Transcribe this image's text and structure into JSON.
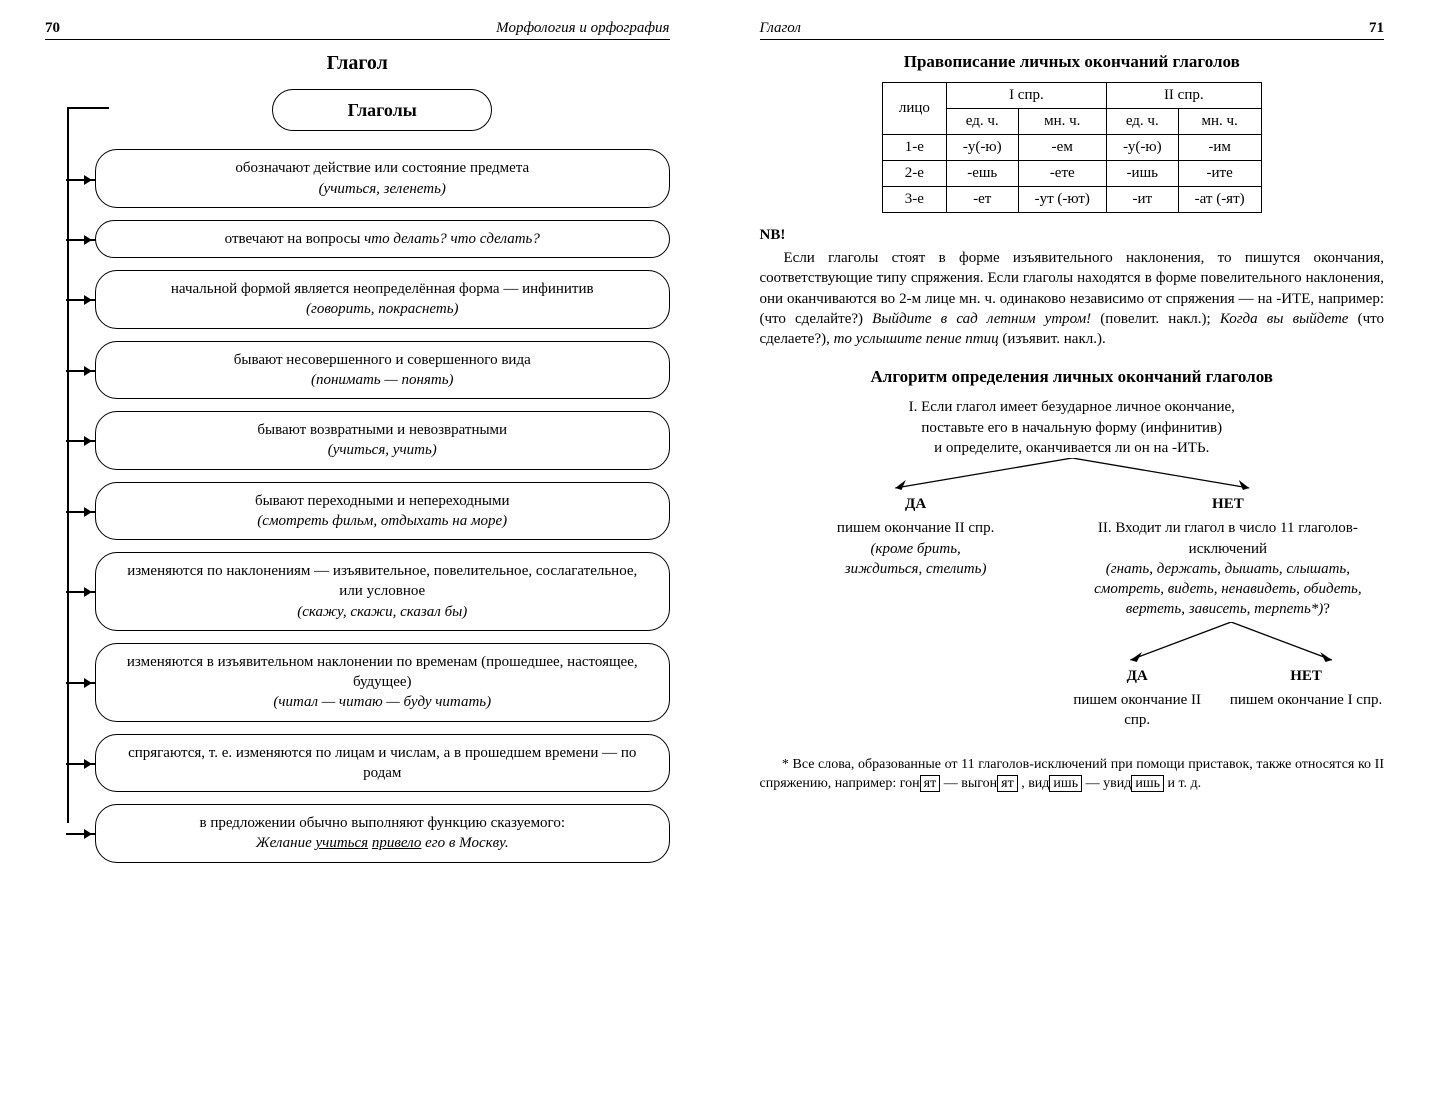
{
  "left": {
    "page_num": "70",
    "running": "Морфология и орфография",
    "title": "Глагол",
    "root": "Глаголы",
    "nodes": [
      {
        "text": "обозначают действие или состояние предмета",
        "eg": "(учиться, зеленеть)"
      },
      {
        "text": "отвечают на вопросы что делать? что сделать?",
        "eg": ""
      },
      {
        "text": "начальной формой является неопределённая форма — инфинитив",
        "eg": "(говорить, покраснеть)"
      },
      {
        "text": "бывают несовершенного и совершенного вида",
        "eg": "(понимать — понять)"
      },
      {
        "text": "бывают возвратными и невозвратными",
        "eg": "(учиться, учить)"
      },
      {
        "text": "бывают переходными и непереходными",
        "eg": "(смотреть фильм, отдыхать на море)"
      },
      {
        "text": "изменяются по наклонениям — изъявительное, повелительное, сослагательное, или условное",
        "eg": "(скажу, скажи, сказал бы)"
      },
      {
        "text": "изменяются в изъявительном наклонении по временам (прошедшее, настоящее, будущее)",
        "eg": "(читал — читаю — буду читать)"
      },
      {
        "text": "спрягаются, т. е. изменяются по лицам и числам, а в прошедшем времени — по родам",
        "eg": ""
      },
      {
        "text": "в предложении обычно выполняют функцию сказуемого:",
        "sent_pre": "Желание ",
        "sent_u1": "учиться",
        "sent_mid": " ",
        "sent_u2": "привело",
        "sent_post": " его в Москву."
      }
    ]
  },
  "right": {
    "page_num": "71",
    "running": "Глагол",
    "title1": "Правописание личных окончаний глаголов",
    "table": {
      "col_person": "лицо",
      "grp1": "I спр.",
      "grp2": "II спр.",
      "sub": [
        "ед. ч.",
        "мн. ч.",
        "ед. ч.",
        "мн. ч."
      ],
      "rows": [
        [
          "1-е",
          "-у(-ю)",
          "-ем",
          "-у(-ю)",
          "-им"
        ],
        [
          "2-е",
          "-ешь",
          "-ете",
          "-ишь",
          "-ите"
        ],
        [
          "3-е",
          "-ет",
          "-ут (-ют)",
          "-ит",
          "-ат (-ят)"
        ]
      ]
    },
    "nb": "NB!",
    "para": {
      "t1": "Если глаголы стоят в форме изъявительного наклонения, то пишутся окончания, соответствующие типу спряжения. Если глаголы находятся в форме повелительного наклонения, они оканчиваются во 2-м лице мн. ч. одинаково независимо от спряжения — на -ИТЕ, например: (что сделайте?) ",
      "i1": "Выйдите в сад летним утром!",
      "t2": " (повелит. накл.); ",
      "i2": "Когда вы выйдете",
      "t3": " (что сделаете?), ",
      "i3": "то услышите пение птиц",
      "t4": " (изъявит. накл.)."
    },
    "title2": "Алгоритм определения личных окончаний глаголов",
    "tree": {
      "step1_l1": "I. Если глагол имеет безударное личное окончание,",
      "step1_l2": "поставьте его в начальную форму (инфинитив)",
      "step1_l3": "и определите, оканчивается ли он на -ИТЬ.",
      "yes": "ДА",
      "no": "НЕТ",
      "yes1_l1": "пишем окончание II спр.",
      "yes1_l2": "(кроме брить,",
      "yes1_l3": "зиждиться, стелить)",
      "no1_l1": "II. Входит ли глагол в число 11 глаголов-исключений",
      "no1_l2": "(гнать, держать, дышать, слышать,",
      "no1_l3": "смотреть, видеть, ненавидеть, обидеть,",
      "no1_l4": "вертеть, зависеть, терпеть*)",
      "no1_q": "?",
      "yes2": "пишем окончание II спр.",
      "no2": "пишем окончание I спр."
    },
    "footnote": {
      "t1": "* Все слова, образованные от 11 глаголов-исключений при помощи приставок, также относятся ко II спряжению, например: ",
      "w1a": "гон",
      "w1b": "ят",
      "t2": " — выгон",
      "w2b": "ят",
      "t3": " , ",
      "w3a": "вид",
      "w3b": "ишь",
      "t4": " — увид",
      "w4b": "ишь",
      "t5": " и т. д."
    }
  }
}
